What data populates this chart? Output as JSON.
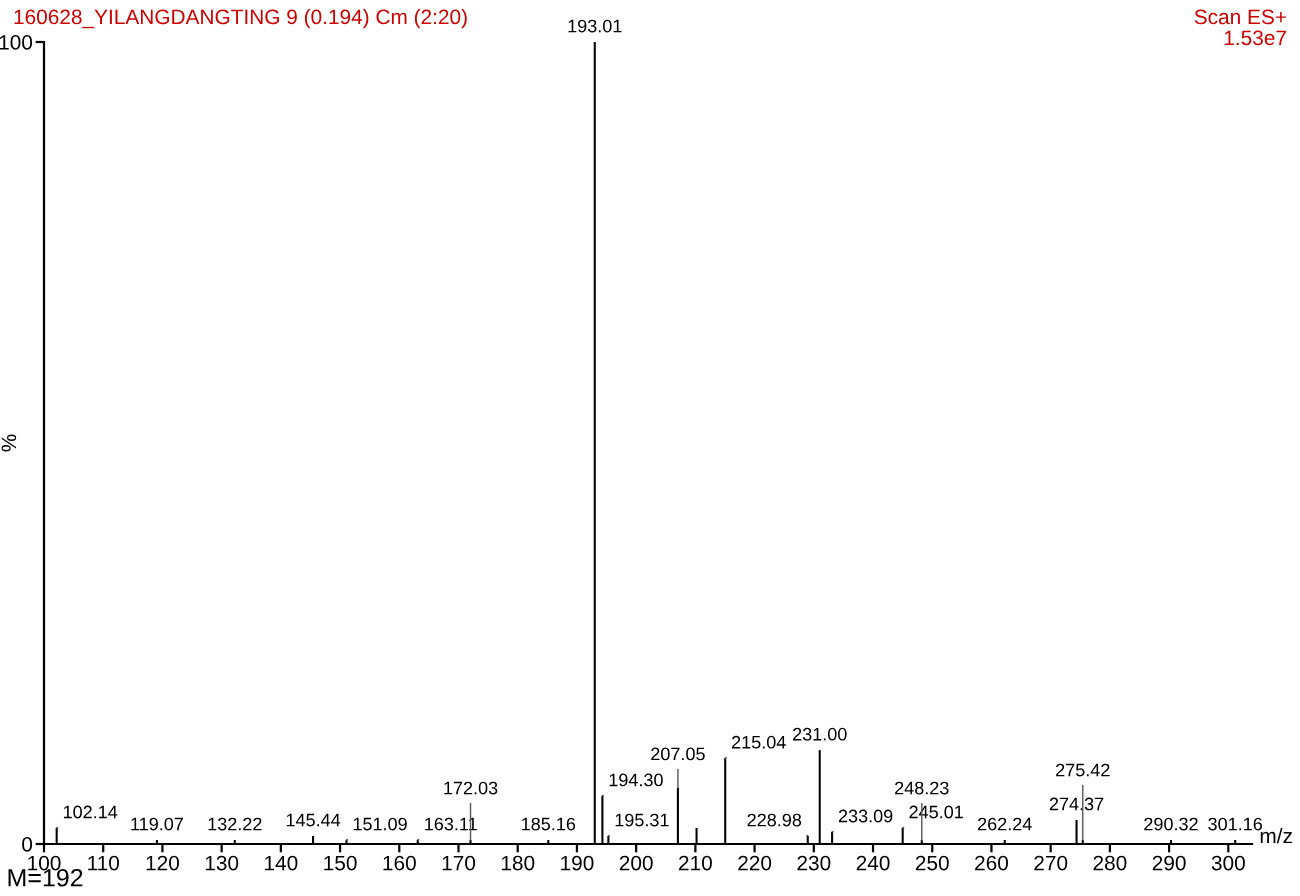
{
  "chart_data": {
    "type": "bar",
    "title": "160628_YILANGDANGTING 9 (0.194) Cm (2:20)",
    "subtitle": "Scan ES+\n1.53e7",
    "xlabel": "m/z",
    "ylabel": "%",
    "x": [
      102.14,
      119.07,
      132.22,
      145.44,
      151.09,
      163.11,
      172.03,
      185.16,
      193.01,
      194.3,
      195.31,
      207.05,
      210.2,
      215.04,
      228.98,
      231.0,
      233.09,
      245.01,
      248.23,
      262.24,
      274.37,
      275.42,
      290.32,
      301.16
    ],
    "values": [
      2,
      0.5,
      0.5,
      1,
      0.5,
      0.5,
      0.5,
      0.5,
      100,
      6,
      1,
      7,
      2,
      10.7,
      1,
      11.7,
      1.5,
      2,
      0.5,
      0.5,
      3,
      0.5,
      0.5,
      0.5
    ],
    "color": "#000000",
    "xlim": [
      100,
      304
    ],
    "xticks": [
      100,
      110,
      120,
      130,
      140,
      150,
      160,
      170,
      180,
      190,
      200,
      210,
      220,
      230,
      240,
      250,
      260,
      270,
      280,
      290,
      300
    ],
    "ylim": [
      0,
      100
    ],
    "yticks": [
      0,
      100
    ],
    "annotations": [
      {
        "text": "102.14",
        "x": 102.14,
        "y": 2
      },
      {
        "text": "119.07",
        "x": 119.07,
        "y": 0.5
      },
      {
        "text": "132.22",
        "x": 132.22,
        "y": 0.5
      },
      {
        "text": "145.44",
        "x": 145.44,
        "y": 1
      },
      {
        "text": "151.09",
        "x": 151.09,
        "y": 0.5
      },
      {
        "text": "163.11",
        "x": 163.11,
        "y": 0.5
      },
      {
        "text": "172.03",
        "x": 172.03,
        "y": 0.5
      },
      {
        "text": "185.16",
        "x": 185.16,
        "y": 0.5
      },
      {
        "text": "193.01",
        "x": 193.01,
        "y": 100
      },
      {
        "text": "194.30",
        "x": 194.3,
        "y": 6
      },
      {
        "text": "195.31",
        "x": 195.31,
        "y": 1
      },
      {
        "text": "207.05",
        "x": 207.05,
        "y": 7
      },
      {
        "text": "215.04",
        "x": 215.04,
        "y": 10.7
      },
      {
        "text": "228.98",
        "x": 228.98,
        "y": 1
      },
      {
        "text": "231.00",
        "x": 231.0,
        "y": 11.7
      },
      {
        "text": "233.09",
        "x": 233.09,
        "y": 1.5
      },
      {
        "text": "245.01",
        "x": 245.01,
        "y": 2
      },
      {
        "text": "248.23",
        "x": 248.23,
        "y": 0.5
      },
      {
        "text": "262.24",
        "x": 262.24,
        "y": 0.5
      },
      {
        "text": "274.37",
        "x": 274.37,
        "y": 3
      },
      {
        "text": "275.42",
        "x": 275.42,
        "y": 0.5
      },
      {
        "text": "290.32",
        "x": 290.32,
        "y": 0.5
      },
      {
        "text": "301.16",
        "x": 301.16,
        "y": 0.5
      },
      "M=192"
    ],
    "grid": false,
    "legend": false
  }
}
